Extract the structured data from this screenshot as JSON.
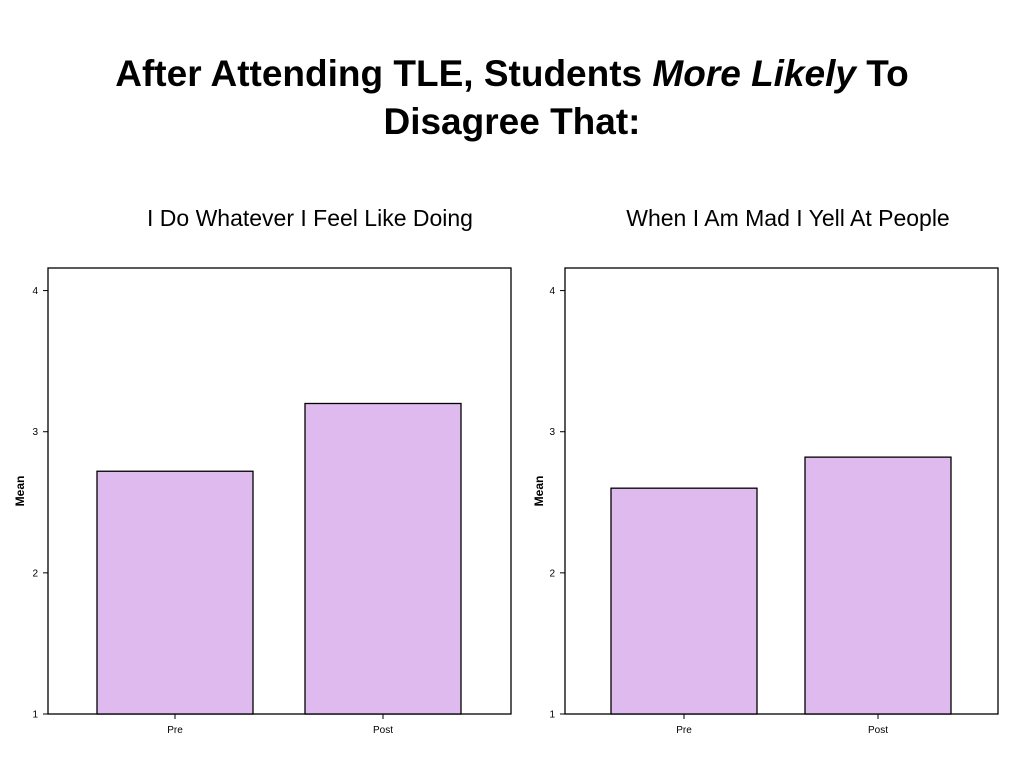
{
  "slide": {
    "title_part1": "After Attending TLE, Students ",
    "title_emph": "More Likely",
    "title_part2": " To",
    "title_line2": "Disagree That:"
  },
  "colors": {
    "bar_fill": "#dfbaee",
    "bar_stroke": "#000000"
  },
  "chart_data": [
    {
      "type": "bar",
      "title": "I Do Whatever I Feel Like Doing",
      "categories": [
        "Pre",
        "Post"
      ],
      "values": [
        2.72,
        3.2
      ],
      "ylabel": "Mean",
      "xlabel": "",
      "ylim": [
        1,
        4.16
      ],
      "yticks": [
        1,
        2,
        3,
        4
      ],
      "grid": false
    },
    {
      "type": "bar",
      "title": "When I Am Mad I Yell At People",
      "categories": [
        "Pre",
        "Post"
      ],
      "values": [
        2.6,
        2.82
      ],
      "ylabel": "Mean",
      "xlabel": "",
      "ylim": [
        1,
        4.16
      ],
      "yticks": [
        1,
        2,
        3,
        4
      ],
      "grid": false
    }
  ]
}
